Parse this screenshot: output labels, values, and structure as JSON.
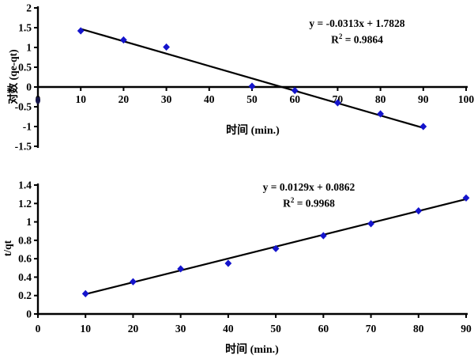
{
  "chart_data": [
    {
      "id": "pseudo-first-order-plot",
      "type": "scatter",
      "title": "",
      "xlabel": "时间 (min.)",
      "ylabel": "对数 (qe-qt)",
      "equation": "y = -0.0313x + 1.7828",
      "r2_base": "R",
      "r2_sup": "2",
      "r2_value": " = 0.9864",
      "xlim": [
        0,
        100
      ],
      "ylim": [
        -1.5,
        2
      ],
      "x_ticks": [
        "0",
        "10",
        "20",
        "30",
        "40",
        "50",
        "60",
        "70",
        "80",
        "90",
        "100"
      ],
      "y_ticks": [
        "2",
        "1.5",
        "1",
        "0.5",
        "0",
        "-0.5",
        "-1",
        "-1.5"
      ],
      "grid": false,
      "legend": "none",
      "points": [
        {
          "x": 10,
          "y": 1.42
        },
        {
          "x": 20,
          "y": 1.19
        },
        {
          "x": 30,
          "y": 1.01
        },
        {
          "x": 50,
          "y": 0.02
        },
        {
          "x": 60,
          "y": -0.09
        },
        {
          "x": 70,
          "y": -0.4
        },
        {
          "x": 80,
          "y": -0.68
        },
        {
          "x": 90,
          "y": -1.0
        }
      ],
      "trendline": {
        "slope": -0.0313,
        "intercept": 1.7828,
        "x_start": 10,
        "x_end": 90
      },
      "stray_marker": {
        "x": 0,
        "y": -0.34
      },
      "marker_color": "#1414cc",
      "line_color": "#000000"
    },
    {
      "id": "pseudo-second-order-plot",
      "type": "scatter",
      "title": "",
      "xlabel": "时间 (min.)",
      "ylabel": "t/qt",
      "equation": "y = 0.0129x + 0.0862",
      "r2_base": "R",
      "r2_sup": "2",
      "r2_value": " = 0.9968",
      "xlim": [
        0,
        90
      ],
      "ylim": [
        0,
        1.4
      ],
      "x_ticks": [
        "0",
        "10",
        "20",
        "30",
        "40",
        "50",
        "60",
        "70",
        "80",
        "90"
      ],
      "y_ticks": [
        "0",
        "0.2",
        "0.4",
        "0.6",
        "0.8",
        "1",
        "1.2",
        "1.4"
      ],
      "grid": false,
      "legend": "none",
      "points": [
        {
          "x": 10,
          "y": 0.22
        },
        {
          "x": 20,
          "y": 0.35
        },
        {
          "x": 30,
          "y": 0.49
        },
        {
          "x": 40,
          "y": 0.55
        },
        {
          "x": 50,
          "y": 0.71
        },
        {
          "x": 60,
          "y": 0.85
        },
        {
          "x": 70,
          "y": 0.98
        },
        {
          "x": 80,
          "y": 1.12
        },
        {
          "x": 90,
          "y": 1.26
        }
      ],
      "trendline": {
        "slope": 0.0129,
        "intercept": 0.0862,
        "x_start": 10,
        "x_end": 90
      },
      "marker_color": "#1414cc",
      "line_color": "#000000"
    }
  ]
}
